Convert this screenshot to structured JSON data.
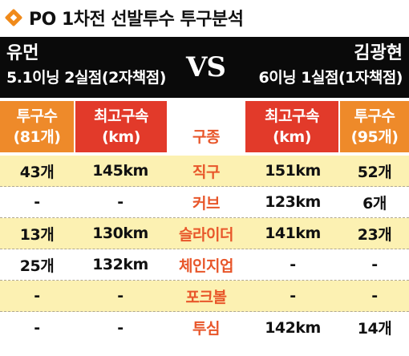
{
  "title": "PO 1차전 선발투수 투구분석",
  "header": {
    "left_pitcher": {
      "name": "유먼",
      "stat": "5.1이닝 2실점(2자책점)"
    },
    "vs": "VS",
    "right_pitcher": {
      "name": "김광현",
      "stat": "6이닝 1실점(1자책점)"
    }
  },
  "columns": [
    {
      "line1": "투구수",
      "line2": "(81개)"
    },
    {
      "line1": "최고구속",
      "line2": "(km)"
    },
    {
      "line1": "구종",
      "line2": ""
    },
    {
      "line1": "최고구속",
      "line2": "(km)"
    },
    {
      "line1": "투구수",
      "line2": "(95개)"
    }
  ],
  "rows": [
    {
      "left_count": "43개",
      "left_speed": "145km",
      "pitch": "직구",
      "right_speed": "151km",
      "right_count": "52개"
    },
    {
      "left_count": "-",
      "left_speed": "-",
      "pitch": "커브",
      "right_speed": "123km",
      "right_count": "6개"
    },
    {
      "left_count": "13개",
      "left_speed": "130km",
      "pitch": "슬라이더",
      "right_speed": "141km",
      "right_count": "23개"
    },
    {
      "left_count": "25개",
      "left_speed": "132km",
      "pitch": "체인지업",
      "right_speed": "-",
      "right_count": "-"
    },
    {
      "left_count": "-",
      "left_speed": "-",
      "pitch": "포크볼",
      "right_speed": "-",
      "right_count": "-"
    },
    {
      "left_count": "-",
      "left_speed": "-",
      "pitch": "투심",
      "right_speed": "142km",
      "right_count": "14개"
    }
  ],
  "colors": {
    "orange": "#ee8a2a",
    "red": "#e23a2a",
    "pitch_text": "#e8562a",
    "row_yellow": "#fcf1b2"
  },
  "icons": {
    "title_marker": "diamond-icon"
  }
}
